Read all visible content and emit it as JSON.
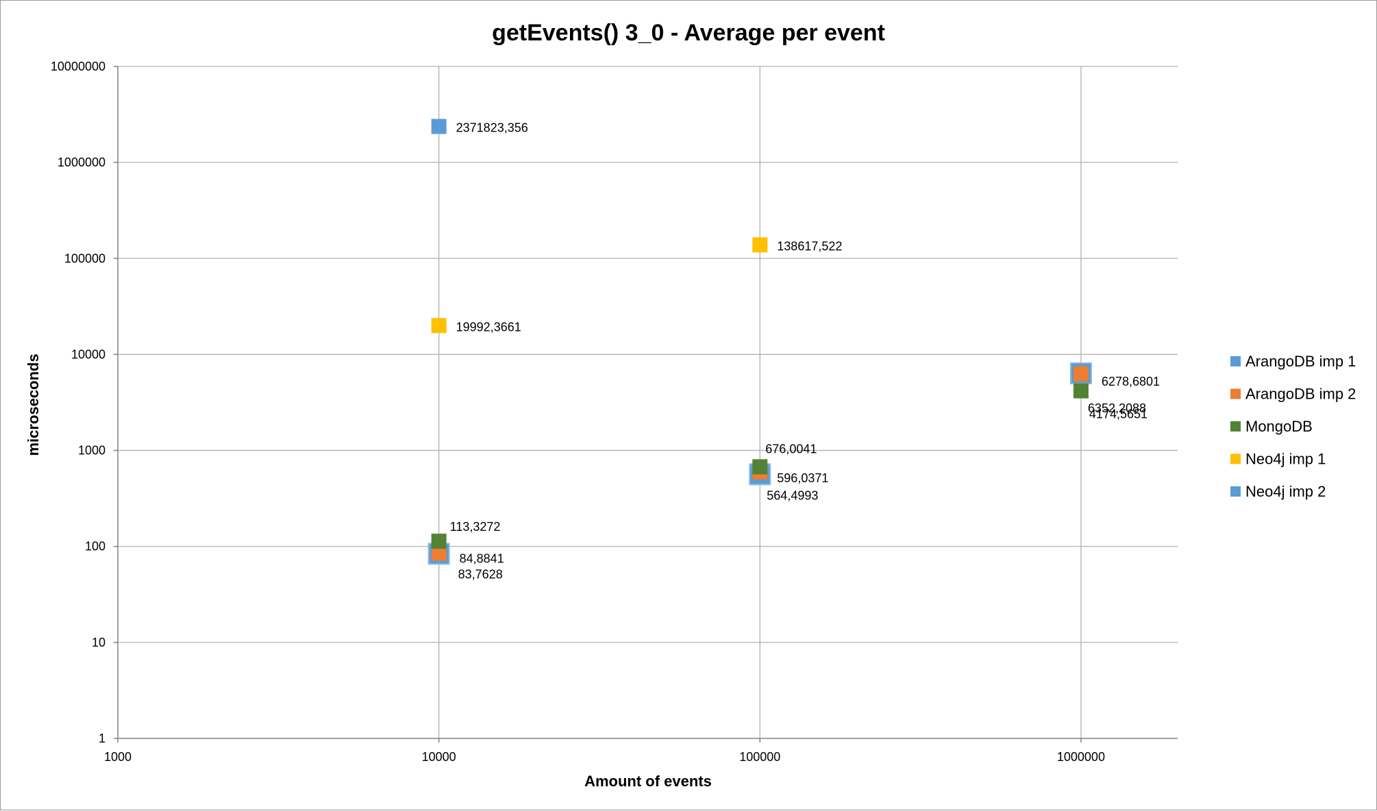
{
  "chart_data": {
    "type": "scatter",
    "title": "getEvents() 3_0 - Average per event",
    "xlabel": "Amount of events",
    "ylabel": "microseconds",
    "xscale": "log",
    "yscale": "log",
    "xlim": [
      1000,
      2000000
    ],
    "ylim": [
      1,
      10000000
    ],
    "xticks": [
      1000,
      10000,
      100000,
      1000000
    ],
    "xtick_labels": [
      "1000",
      "10000",
      "100000",
      "1000000"
    ],
    "yticks": [
      1,
      10,
      100,
      1000,
      10000,
      100000,
      1000000,
      10000000
    ],
    "ytick_labels": [
      "1",
      "10",
      "100",
      "1000",
      "10000",
      "100000",
      "1000000",
      "10000000"
    ],
    "grid": true,
    "legend_position": "right",
    "series": [
      {
        "name": "ArangoDB imp 1",
        "color": "#5b9bd5",
        "points": [
          {
            "x": 10000,
            "y": 83.7628,
            "label": "83,7628"
          },
          {
            "x": 100000,
            "y": 564.4993,
            "label": "564,4993"
          },
          {
            "x": 1000000,
            "y": 6352.2088,
            "label": "6352,2088"
          }
        ]
      },
      {
        "name": "ArangoDB imp 2",
        "color": "#ed7d31",
        "points": [
          {
            "x": 10000,
            "y": 84.8841,
            "label": "84,8841"
          },
          {
            "x": 100000,
            "y": 596.0371,
            "label": "596,0371"
          },
          {
            "x": 1000000,
            "y": 6278.6801,
            "label": "6278,6801"
          }
        ]
      },
      {
        "name": "MongoDB",
        "color": "#548235",
        "points": [
          {
            "x": 10000,
            "y": 113.3272,
            "label": "113,3272"
          },
          {
            "x": 100000,
            "y": 676.0041,
            "label": "676,0041"
          },
          {
            "x": 1000000,
            "y": 4174.5651,
            "label": "4174,5651"
          }
        ]
      },
      {
        "name": "Neo4j imp 1",
        "color": "#ffc000",
        "points": [
          {
            "x": 10000,
            "y": 19992.3661,
            "label": "19992,3661"
          },
          {
            "x": 100000,
            "y": 138617.522,
            "label": "138617,522"
          }
        ]
      },
      {
        "name": "Neo4j imp 2",
        "color": "#5b9bd5",
        "points": [
          {
            "x": 10000,
            "y": 2371823.356,
            "label": "2371823,356"
          }
        ]
      }
    ]
  }
}
